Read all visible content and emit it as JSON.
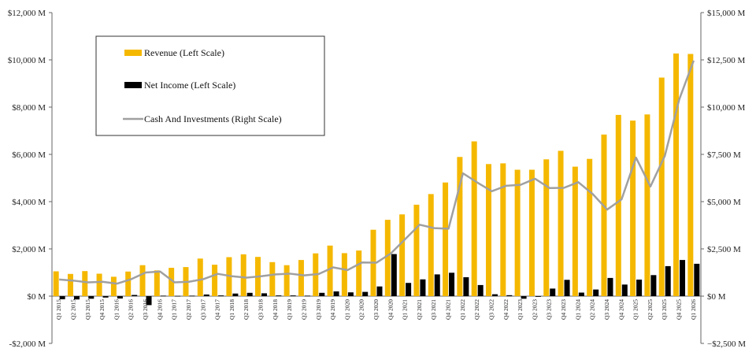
{
  "chart_data": {
    "type": "bar",
    "title": "",
    "xlabel": "",
    "ylabel": "",
    "categories": [
      "Q1 2015",
      "Q2 2015",
      "Q3 2015",
      "Q4 2015",
      "Q1 2016",
      "Q2 2016",
      "Q3 2016",
      "Q4 2016",
      "Q1 2017",
      "Q2 2017",
      "Q3 2017",
      "Q4 2017",
      "Q1 2018",
      "Q2 2018",
      "Q3 2018",
      "Q4 2018",
      "Q1 2019",
      "Q2 2019",
      "Q3 2019",
      "Q4 2019",
      "Q1 2020",
      "Q2 2020",
      "Q3 2020",
      "Q4 2020",
      "Q1 2021",
      "Q2 2021",
      "Q3 2021",
      "Q4 2021",
      "Q1 2022",
      "Q2 2022",
      "Q3 2022",
      "Q4 2022",
      "Q1 2023",
      "Q2 2023",
      "Q3 2023",
      "Q4 2023",
      "Q1 2024",
      "Q2 2024",
      "Q3 2024",
      "Q4 2024",
      "Q1 2025",
      "Q2 2025",
      "Q3 2025",
      "Q4 2025",
      "Q1 2026"
    ],
    "series": [
      {
        "name": "Revenue (Left Scale)",
        "type": "bar",
        "axis": "left",
        "color": "#F5B800",
        "values": [
          1050,
          940,
          1060,
          950,
          820,
          1040,
          1310,
          1090,
          1200,
          1230,
          1590,
          1330,
          1650,
          1770,
          1660,
          1440,
          1310,
          1530,
          1810,
          2140,
          1820,
          1930,
          2810,
          3230,
          3460,
          3870,
          4320,
          4810,
          5890,
          6550,
          5590,
          5620,
          5350,
          5350,
          5790,
          6150,
          5480,
          5810,
          6840,
          7670,
          7430,
          7690,
          9250,
          10270,
          10250
        ]
      },
      {
        "name": "Net Income (Left Scale)",
        "type": "bar",
        "axis": "left",
        "color": "#000000",
        "values": [
          -130,
          -140,
          -110,
          -60,
          -100,
          50,
          -380,
          20,
          10,
          20,
          70,
          30,
          110,
          140,
          120,
          30,
          30,
          20,
          140,
          200,
          160,
          180,
          410,
          1780,
          560,
          710,
          920,
          990,
          800,
          470,
          80,
          40,
          -110,
          -30,
          320,
          690,
          150,
          280,
          770,
          490,
          700,
          890,
          1270,
          1530,
          1370
        ]
      },
      {
        "name": "Cash And Investments (Right Scale)",
        "type": "line",
        "axis": "right",
        "color": "#A0A0A0",
        "values": [
          880,
          820,
          730,
          760,
          660,
          900,
          1250,
          1300,
          730,
          760,
          900,
          1180,
          1050,
          980,
          1050,
          1150,
          1190,
          1100,
          1170,
          1520,
          1380,
          1780,
          1770,
          2260,
          3020,
          3780,
          3600,
          3570,
          6500,
          6010,
          5550,
          5840,
          5890,
          6210,
          5720,
          5730,
          6030,
          5400,
          4580,
          5120,
          7330,
          5800,
          7420,
          10410,
          12460
        ]
      }
    ],
    "y_left": {
      "ylim": [
        -2000,
        12000
      ],
      "ticks": [
        -2000,
        0,
        2000,
        4000,
        6000,
        8000,
        10000,
        12000
      ]
    },
    "y_right": {
      "ylim": [
        -2500,
        15000
      ],
      "ticks": [
        -2500,
        0,
        2500,
        5000,
        7500,
        10000,
        12500,
        15000
      ]
    },
    "legend": {
      "position": "top-left",
      "boxed": true
    },
    "grid": false
  }
}
